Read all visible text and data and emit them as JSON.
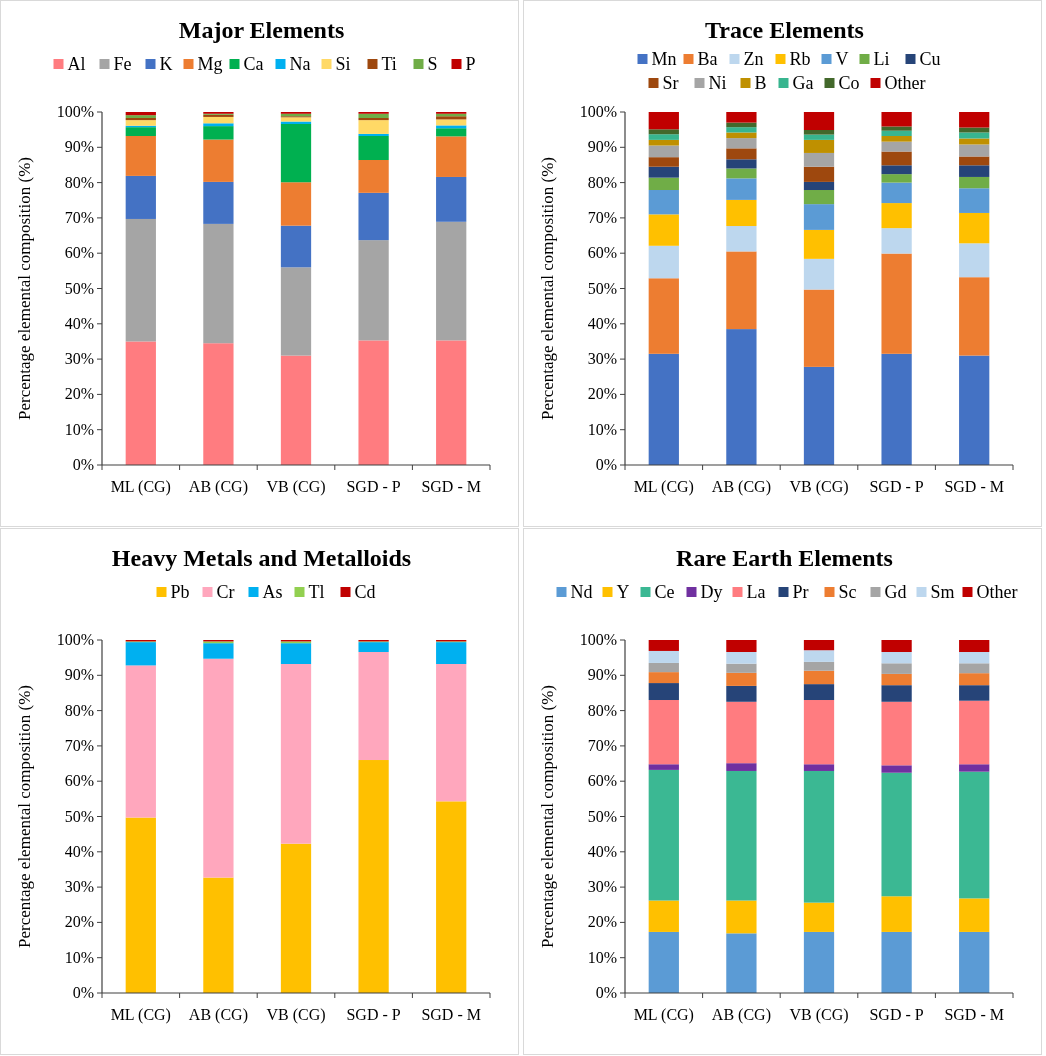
{
  "chart_data": [
    {
      "type": "bar",
      "title": "Major Elements",
      "ylabel": "Percentage elemental composition (%)",
      "stacked": true,
      "legend": "top",
      "categories": [
        "ML (CG)",
        "AB (CG)",
        "VB (CG)",
        "SGD - P",
        "SGD - M"
      ],
      "ylim": [
        0,
        100
      ],
      "yticks": [
        {
          "value": 0,
          "label": "0%"
        },
        {
          "value": 10,
          "label": "10%"
        },
        {
          "value": 20,
          "label": "20%"
        },
        {
          "value": 30,
          "label": "30%"
        },
        {
          "value": 40,
          "label": "40%"
        },
        {
          "value": 50,
          "label": "50%"
        },
        {
          "value": 60,
          "label": "60%"
        },
        {
          "value": 70,
          "label": "70%"
        },
        {
          "value": 80,
          "label": "80%"
        },
        {
          "value": 90,
          "label": "90%"
        },
        {
          "value": 100,
          "label": "100%"
        }
      ],
      "series": [
        {
          "name": "Al",
          "color": "#ff7c80",
          "values": [
            35.0,
            34.5,
            31.0,
            35.3,
            35.3
          ]
        },
        {
          "name": "Fe",
          "color": "#a5a5a5",
          "values": [
            34.7,
            33.8,
            25.0,
            28.4,
            33.6
          ]
        },
        {
          "name": "K",
          "color": "#4472c4",
          "values": [
            12.2,
            11.9,
            11.8,
            13.4,
            12.7
          ]
        },
        {
          "name": "Mg",
          "color": "#ed7d31",
          "values": [
            11.3,
            12.0,
            12.3,
            9.3,
            11.5
          ]
        },
        {
          "name": "Ca",
          "color": "#00b050",
          "values": [
            2.5,
            3.8,
            16.5,
            6.8,
            2.3
          ]
        },
        {
          "name": "Na",
          "color": "#00b0f0",
          "values": [
            0.4,
            0.8,
            0.7,
            0.6,
            0.8
          ]
        },
        {
          "name": "Si",
          "color": "#ffd966",
          "values": [
            1.6,
            1.8,
            1.2,
            3.9,
            1.7
          ]
        },
        {
          "name": "Ti",
          "color": "#9e480e",
          "values": [
            0.6,
            0.6,
            0.3,
            0.6,
            0.9
          ]
        },
        {
          "name": "S",
          "color": "#70ad47",
          "values": [
            0.8,
            0.3,
            0.7,
            1.2,
            0.7
          ]
        },
        {
          "name": "P",
          "color": "#c00000",
          "values": [
            0.9,
            0.5,
            0.5,
            0.5,
            0.5
          ]
        }
      ]
    },
    {
      "type": "bar",
      "title": "Trace Elements",
      "ylabel": "Percentage elemental composition (%)",
      "stacked": true,
      "legend": "top",
      "categories": [
        "ML (CG)",
        "AB (CG)",
        "VB (CG)",
        "SGD - P",
        "SGD - M"
      ],
      "ylim": [
        0,
        100
      ],
      "yticks": [
        {
          "value": 0,
          "label": "0%"
        },
        {
          "value": 10,
          "label": "10%"
        },
        {
          "value": 20,
          "label": "20%"
        },
        {
          "value": 30,
          "label": "30%"
        },
        {
          "value": 40,
          "label": "40%"
        },
        {
          "value": 50,
          "label": "50%"
        },
        {
          "value": 60,
          "label": "60%"
        },
        {
          "value": 70,
          "label": "70%"
        },
        {
          "value": 80,
          "label": "80%"
        },
        {
          "value": 90,
          "label": "90%"
        },
        {
          "value": 100,
          "label": "100%"
        }
      ],
      "series": [
        {
          "name": "Mn",
          "color": "#4472c4",
          "values": [
            31.5,
            38.5,
            27.8,
            31.5,
            31.0
          ]
        },
        {
          "name": "Ba",
          "color": "#ed7d31",
          "values": [
            21.4,
            22.0,
            21.9,
            28.4,
            22.2
          ]
        },
        {
          "name": "Zn",
          "color": "#bdd7ee",
          "values": [
            9.2,
            7.2,
            8.7,
            7.2,
            9.6
          ]
        },
        {
          "name": "Rb",
          "color": "#ffc000",
          "values": [
            8.9,
            7.4,
            8.2,
            7.1,
            8.6
          ]
        },
        {
          "name": "V",
          "color": "#5b9bd5",
          "values": [
            6.9,
            6.1,
            7.3,
            5.8,
            7.0
          ]
        },
        {
          "name": "Li",
          "color": "#70ad47",
          "values": [
            3.5,
            2.8,
            4.0,
            2.4,
            3.2
          ]
        },
        {
          "name": "Cu",
          "color": "#264478",
          "values": [
            3.1,
            2.6,
            2.3,
            2.5,
            3.3
          ]
        },
        {
          "name": "Sr",
          "color": "#9e480e",
          "values": [
            2.7,
            3.1,
            4.3,
            3.9,
            2.5
          ]
        },
        {
          "name": "Ni",
          "color": "#a5a5a5",
          "values": [
            3.3,
            2.9,
            3.9,
            2.8,
            3.4
          ]
        },
        {
          "name": "B",
          "color": "#bf9000",
          "values": [
            1.6,
            1.6,
            3.7,
            1.6,
            1.7
          ]
        },
        {
          "name": "Ga",
          "color": "#38b58f",
          "values": [
            1.6,
            1.5,
            1.5,
            1.5,
            1.7
          ]
        },
        {
          "name": "Co",
          "color": "#43682b",
          "values": [
            1.4,
            1.3,
            1.3,
            1.2,
            1.4
          ]
        },
        {
          "name": "Other",
          "color": "#c00000",
          "values": [
            4.9,
            3.0,
            5.1,
            4.1,
            4.4
          ]
        }
      ]
    },
    {
      "type": "bar",
      "title": "Heavy Metals and Metalloids",
      "ylabel": "Percentage elemental composition (%)",
      "stacked": true,
      "legend": "top",
      "categories": [
        "ML (CG)",
        "AB (CG)",
        "VB (CG)",
        "SGD - P",
        "SGD - M"
      ],
      "ylim": [
        0,
        100
      ],
      "yticks": [
        {
          "value": 0,
          "label": "0%"
        },
        {
          "value": 10,
          "label": "10%"
        },
        {
          "value": 20,
          "label": "20%"
        },
        {
          "value": 30,
          "label": "30%"
        },
        {
          "value": 40,
          "label": "40%"
        },
        {
          "value": 50,
          "label": "50%"
        },
        {
          "value": 60,
          "label": "60%"
        },
        {
          "value": 70,
          "label": "70%"
        },
        {
          "value": 80,
          "label": "80%"
        },
        {
          "value": 90,
          "label": "90%"
        },
        {
          "value": 100,
          "label": "100%"
        }
      ],
      "series": [
        {
          "name": "Pb",
          "color": "#ffc000",
          "values": [
            49.7,
            32.7,
            42.3,
            66.0,
            54.3
          ]
        },
        {
          "name": "Cr",
          "color": "#ffa7bd",
          "values": [
            43.1,
            62.0,
            50.9,
            30.6,
            38.9
          ]
        },
        {
          "name": "As",
          "color": "#00b0f0",
          "values": [
            6.6,
            4.4,
            5.9,
            2.8,
            6.2
          ]
        },
        {
          "name": "Tl",
          "color": "#92d050",
          "values": [
            0.2,
            0.5,
            0.5,
            0.2,
            0.2
          ]
        },
        {
          "name": "Cd",
          "color": "#c00000",
          "values": [
            0.4,
            0.4,
            0.4,
            0.4,
            0.4
          ]
        }
      ]
    },
    {
      "type": "bar",
      "title": "Rare Earth Elements",
      "ylabel": "Percentage elemental composition (%)",
      "stacked": true,
      "legend": "top",
      "categories": [
        "ML (CG)",
        "AB (CG)",
        "VB (CG)",
        "SGD - P",
        "SGD - M"
      ],
      "ylim": [
        0,
        100
      ],
      "yticks": [
        {
          "value": 0,
          "label": "0%"
        },
        {
          "value": 10,
          "label": "10%"
        },
        {
          "value": 20,
          "label": "20%"
        },
        {
          "value": 30,
          "label": "30%"
        },
        {
          "value": 40,
          "label": "40%"
        },
        {
          "value": 50,
          "label": "50%"
        },
        {
          "value": 60,
          "label": "60%"
        },
        {
          "value": 70,
          "label": "70%"
        },
        {
          "value": 80,
          "label": "80%"
        },
        {
          "value": 90,
          "label": "90%"
        },
        {
          "value": 100,
          "label": "100%"
        }
      ],
      "series": [
        {
          "name": "Nd",
          "color": "#5b9bd5",
          "values": [
            17.3,
            16.9,
            17.3,
            17.3,
            17.3
          ]
        },
        {
          "name": "Y",
          "color": "#ffc000",
          "values": [
            8.9,
            9.3,
            8.3,
            10.1,
            9.5
          ]
        },
        {
          "name": "Ce",
          "color": "#3bb893",
          "values": [
            37.0,
            36.7,
            37.3,
            35.0,
            35.9
          ]
        },
        {
          "name": "Dy",
          "color": "#7030a0",
          "values": [
            1.6,
            2.2,
            1.9,
            2.1,
            2.1
          ]
        },
        {
          "name": "La",
          "color": "#ff7c80",
          "values": [
            18.2,
            17.4,
            18.2,
            18.0,
            18.0
          ]
        },
        {
          "name": "Pr",
          "color": "#264478",
          "values": [
            4.8,
            4.5,
            4.5,
            4.7,
            4.4
          ]
        },
        {
          "name": "Sc",
          "color": "#ed7d31",
          "values": [
            3.1,
            3.7,
            3.8,
            3.2,
            3.4
          ]
        },
        {
          "name": "Gd",
          "color": "#a5a5a5",
          "values": [
            2.6,
            2.6,
            2.5,
            3.0,
            2.8
          ]
        },
        {
          "name": "Sm",
          "color": "#bdd7ee",
          "values": [
            3.4,
            3.3,
            3.3,
            3.2,
            3.2
          ]
        },
        {
          "name": "Other",
          "color": "#c00000",
          "values": [
            3.1,
            3.4,
            2.9,
            3.4,
            3.4
          ]
        }
      ]
    }
  ]
}
